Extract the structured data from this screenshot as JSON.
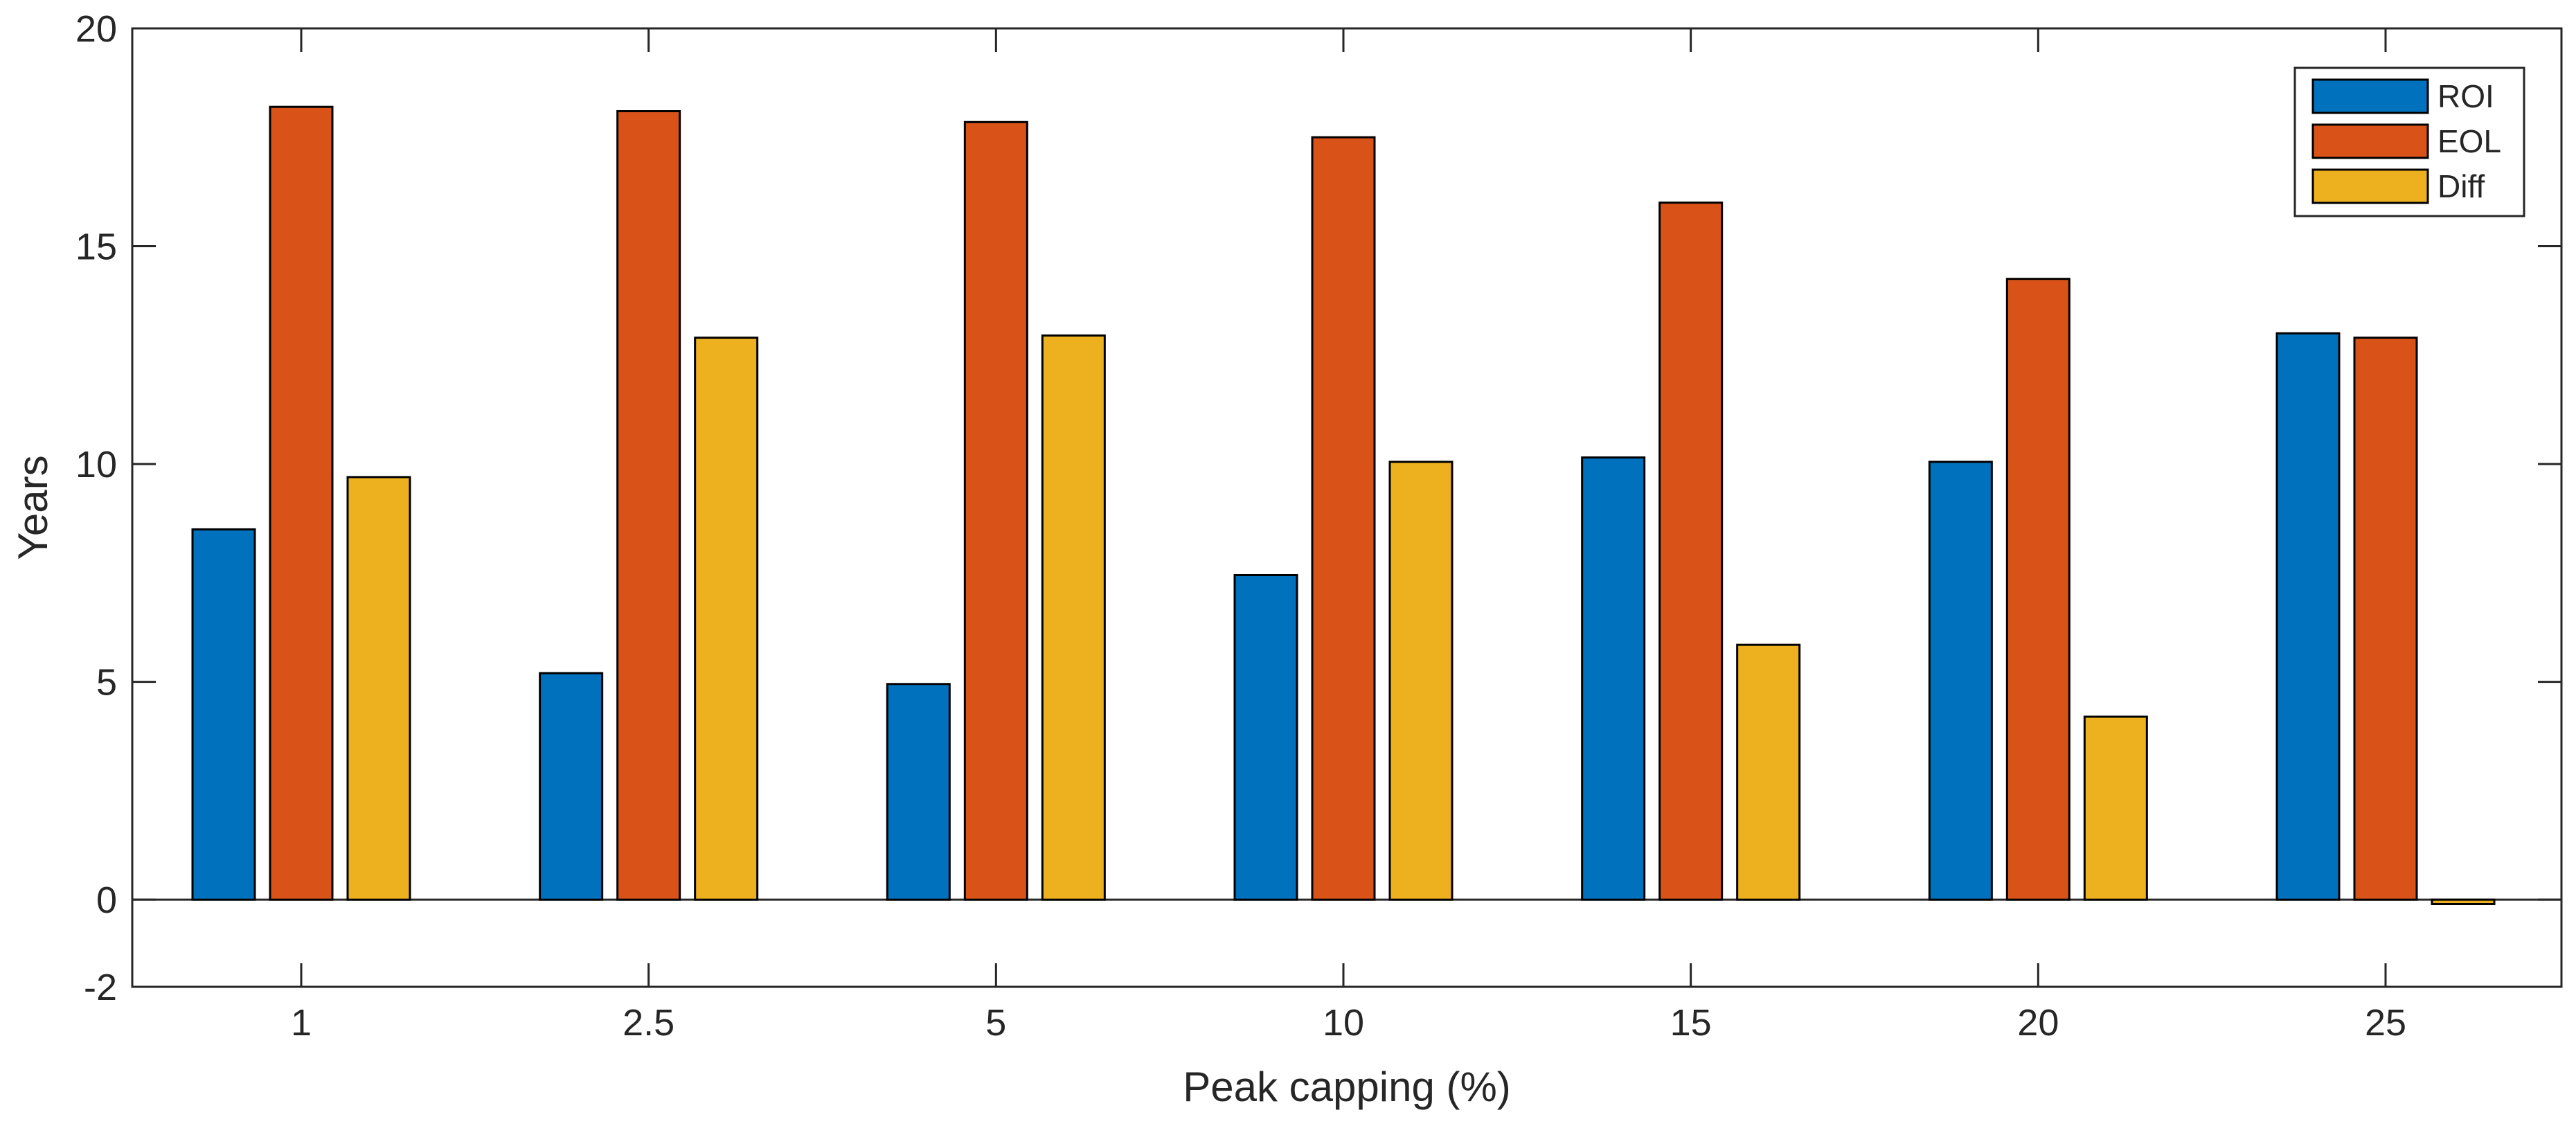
{
  "chart_data": {
    "type": "bar",
    "title": "",
    "xlabel": "Peak capping (%)",
    "ylabel": "Years",
    "categories": [
      "1",
      "2.5",
      "5",
      "10",
      "15",
      "20",
      "25"
    ],
    "ylim": [
      -2,
      20
    ],
    "yticks": [
      -2,
      0,
      5,
      10,
      15,
      20
    ],
    "ytick_labels": [
      "-2",
      "0",
      "5",
      "10",
      "15",
      "20"
    ],
    "grid": false,
    "legend_position": "top-right",
    "series": [
      {
        "name": "ROI",
        "color": "#0072BD",
        "values": [
          8.5,
          5.2,
          4.95,
          7.45,
          10.15,
          10.05,
          13.0
        ]
      },
      {
        "name": "EOL",
        "color": "#D95319",
        "values": [
          18.2,
          18.1,
          17.85,
          17.5,
          16.0,
          14.25,
          12.9
        ]
      },
      {
        "name": "Diff",
        "color": "#EDB120",
        "values": [
          9.7,
          12.9,
          12.95,
          10.05,
          5.85,
          4.2,
          -0.1
        ]
      }
    ]
  }
}
